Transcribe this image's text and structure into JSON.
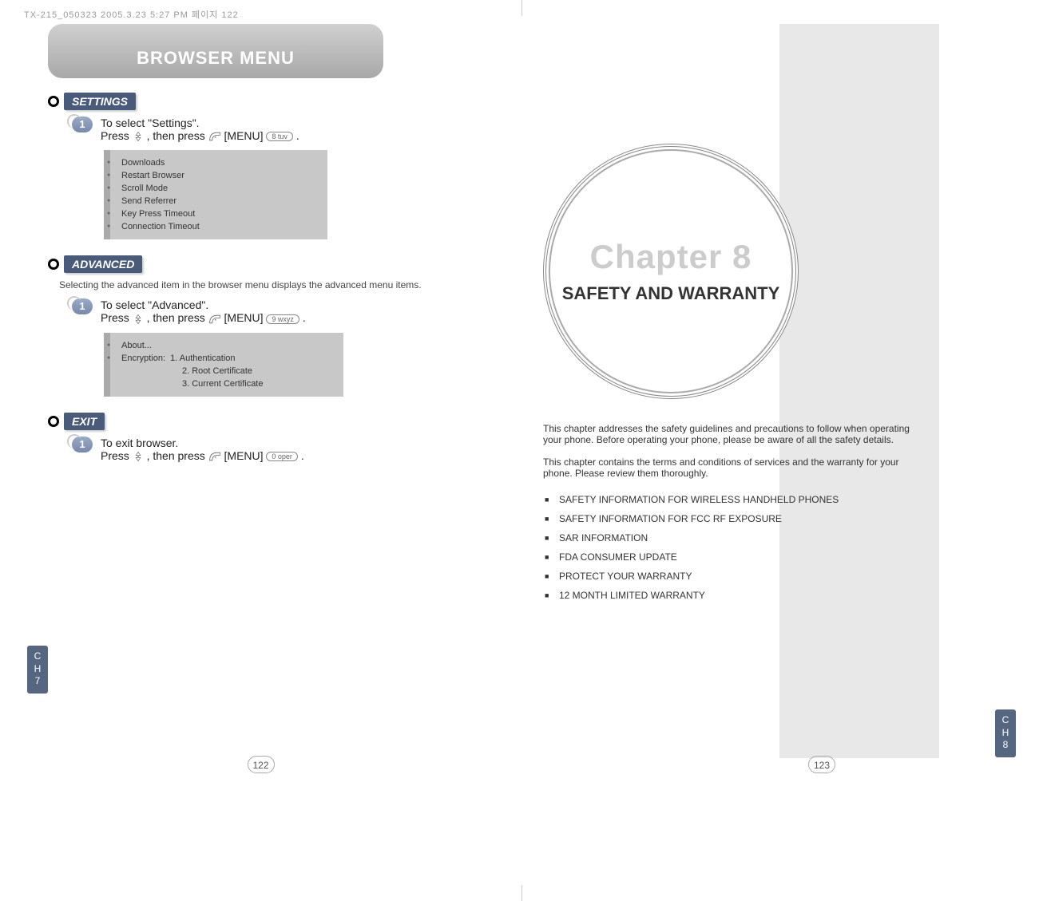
{
  "meta": {
    "header_text": "TX-215_050323  2005.3.23 5:27 PM  페이지 122"
  },
  "left_page": {
    "browser_title": "BROWSER MENU",
    "side_tab": "C\nH\n7",
    "page_number": "122",
    "settings": {
      "label": "SETTINGS",
      "step_prefix": "To select \"Settings\".",
      "step_line2a": "Press ",
      "step_line2b": " , then press ",
      "step_line2c": " [MENU] ",
      "step_line2d": " .",
      "key_label": "8 tuv",
      "items": [
        "Downloads",
        "Restart Browser",
        "Scroll Mode",
        "Send Referrer",
        "Key Press Timeout",
        "Connection Timeout"
      ]
    },
    "advanced": {
      "label": "ADVANCED",
      "desc": "Selecting the advanced item in the browser menu displays the advanced menu items.",
      "step_prefix": "To select \"Advanced\".",
      "step_line2a": "Press ",
      "step_line2b": " , then press ",
      "step_line2c": " [MENU] ",
      "step_line2d": " .",
      "key_label": "9 wxyz",
      "item_about": "About...",
      "item_enc_label": "Encryption:",
      "enc1": "1. Authentication",
      "enc2": "2. Root Certificate",
      "enc3": "3. Current Certificate"
    },
    "exit": {
      "label": "EXIT",
      "step_prefix": "To exit browser.",
      "step_line2a": "Press ",
      "step_line2b": " , then press ",
      "step_line2c": " [MENU] ",
      "step_line2d": " .",
      "key_label": "0 oper"
    }
  },
  "right_page": {
    "chapter_number": "Chapter 8",
    "chapter_title": "SAFETY AND WARRANTY",
    "side_tab": "C\nH\n8",
    "page_number": "123",
    "intro_p1": "This chapter addresses the safety guidelines and precautions to follow when operating your phone. Before operating your phone, please be aware of all the safety details.",
    "intro_p2": "This chapter contains the terms and conditions of services and the warranty for your phone. Please review them thoroughly.",
    "topics": [
      "SAFETY INFORMATION FOR WIRELESS HANDHELD PHONES",
      "SAFETY INFORMATION FOR FCC RF EXPOSURE",
      "SAR INFORMATION",
      "FDA CONSUMER UPDATE",
      "PROTECT YOUR WARRANTY",
      "12 MONTH LIMITED WARRANTY"
    ]
  },
  "colors": {
    "section_tab_bg": "#4a5a7a",
    "side_tab_bg": "#556680",
    "menu_box_bg": "#c8c8c8",
    "chapter_bg": "#e8e8e8",
    "chapter_num_color": "#cccccc"
  }
}
